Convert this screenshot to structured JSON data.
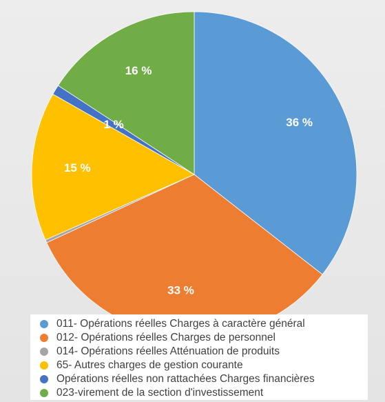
{
  "chart_data": {
    "type": "pie",
    "title": "",
    "slices": [
      {
        "label": "011- Opérations réelles Charges à caractère général",
        "value": 36,
        "display": "36 %",
        "color": "#5b9bd5"
      },
      {
        "label": "012- Opérations réelles Charges de personnel",
        "value": 33,
        "display": "33 %",
        "color": "#ed7d31"
      },
      {
        "label": "014- Opérations réelles Atténuation de produits",
        "value": 0.3,
        "display": "",
        "color": "#a5a5a5"
      },
      {
        "label": "65- Autres charges de gestion courante",
        "value": 15,
        "display": "15 %",
        "color": "#ffc000"
      },
      {
        "label": "Opérations réelles non rattachées Charges financières",
        "value": 1,
        "display": "1 %",
        "color": "#4472c4"
      },
      {
        "label": "023-virement de la section d'investissement",
        "value": 16,
        "display": "16 %",
        "color": "#70ad47"
      }
    ],
    "legend_position": "bottom",
    "start_angle_deg": 0,
    "direction": "clockwise"
  },
  "legend": {
    "items": [
      "011- Opérations réelles Charges à caractère général",
      "012- Opérations réelles Charges de personnel",
      "014- Opérations réelles Atténuation de produits",
      "65- Autres charges de gestion courante",
      "Opérations réelles non rattachées Charges financières",
      "023-virement de la section d'investissement"
    ]
  }
}
